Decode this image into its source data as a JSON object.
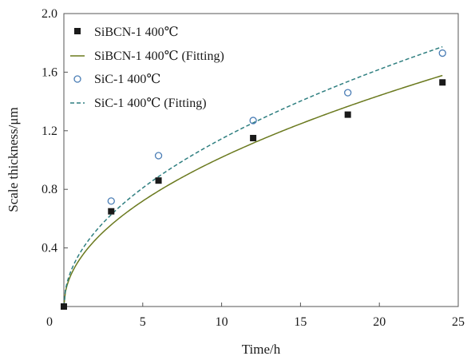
{
  "chart_data": {
    "type": "scatter",
    "title": "",
    "xlabel": "Time/h",
    "ylabel": "Scale thickness/μm",
    "xlim": [
      0,
      25
    ],
    "ylim": [
      0,
      2.0
    ],
    "xticks": [
      "0",
      "5",
      "10",
      "15",
      "20",
      "25"
    ],
    "yticks": [
      "0.4",
      "0.8",
      "1.2",
      "1.6",
      "2.0"
    ],
    "grid": false,
    "legend_position": "top-left",
    "series": [
      {
        "name": "SiBCN-1 400℃",
        "kind": "points",
        "marker": "square",
        "color": "#1a1a1a",
        "x": [
          0,
          3,
          6,
          12,
          18,
          24
        ],
        "y": [
          0.0,
          0.65,
          0.86,
          1.15,
          1.31,
          1.53
        ]
      },
      {
        "name": "SiBCN-1 400℃ (Fitting)",
        "kind": "line",
        "style": "solid",
        "color": "#6b7a1f",
        "formula": "y = 0.322·x^0.5"
      },
      {
        "name": "SiC-1 400℃",
        "kind": "points",
        "marker": "circle-open",
        "color": "#4a7db5",
        "x": [
          3,
          6,
          12,
          18,
          24
        ],
        "y": [
          0.72,
          1.03,
          1.27,
          1.46,
          1.73
        ]
      },
      {
        "name": "SiC-1 400℃ (Fitting)",
        "kind": "line",
        "style": "dashed",
        "color": "#2f7f80",
        "formula": "y = 0.362·x^0.5"
      }
    ]
  }
}
